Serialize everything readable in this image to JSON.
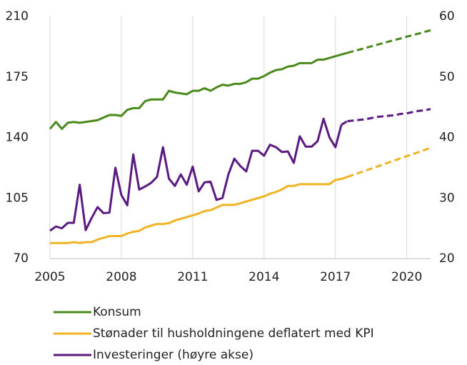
{
  "chart_data": {
    "type": "line",
    "x": [
      2005,
      2005.25,
      2005.5,
      2005.75,
      2006,
      2006.25,
      2006.5,
      2006.75,
      2007,
      2007.25,
      2007.5,
      2007.75,
      2008,
      2008.25,
      2008.5,
      2008.75,
      2009,
      2009.25,
      2009.5,
      2009.75,
      2010,
      2010.25,
      2010.5,
      2010.75,
      2011,
      2011.25,
      2011.5,
      2011.75,
      2012,
      2012.25,
      2012.5,
      2012.75,
      2013,
      2013.25,
      2013.5,
      2013.75,
      2014,
      2014.25,
      2014.5,
      2014.75,
      2015,
      2015.25,
      2015.5,
      2015.75,
      2016,
      2016.25,
      2016.5,
      2016.75,
      2017,
      2017.25,
      2017.5,
      2017.75,
      2018,
      2018.25,
      2018.5,
      2018.75,
      2019,
      2019.25,
      2019.5,
      2019.75,
      2020,
      2020.25,
      2020.5,
      2020.75,
      2021
    ],
    "dashed_from_x": 2017.25,
    "series": [
      {
        "name": "Konsum",
        "color": "#4a8a1c",
        "axis": "y",
        "values": [
          145,
          149,
          145,
          148.5,
          149,
          148.5,
          149,
          149.5,
          150,
          151.5,
          153,
          153,
          152.5,
          156,
          157,
          157,
          161,
          162,
          162,
          162,
          167,
          166,
          165.5,
          165,
          167,
          167,
          168.5,
          167,
          169,
          170.5,
          170,
          171,
          171,
          172,
          174,
          174,
          175.5,
          177.5,
          179,
          179.5,
          181,
          181.5,
          183,
          183,
          183,
          185,
          185,
          186,
          187,
          188,
          188.9,
          189.9,
          190.8,
          191.7,
          192.7,
          193.6,
          194.5,
          195.5,
          196.4,
          197.3,
          198.3,
          199.2,
          200.1,
          201.1,
          202
        ]
      },
      {
        "name": "Stønader til husholdningene deflatert med KPI",
        "color": "#f0b323",
        "axis": "y",
        "values": [
          79,
          79,
          79,
          79,
          79.5,
          79,
          79.5,
          79.5,
          81,
          82,
          83,
          83,
          83,
          84.5,
          85.5,
          86,
          88,
          89,
          90,
          90,
          90.5,
          92,
          93,
          94,
          95,
          96,
          97.5,
          98,
          99.5,
          101,
          101,
          101,
          102,
          103,
          104,
          105,
          106,
          107.5,
          108.5,
          110,
          112,
          112,
          113,
          113,
          113,
          113,
          113,
          113,
          115.5,
          116,
          117.2,
          118.4,
          119.6,
          120.8,
          122,
          123.2,
          124.4,
          125.6,
          126.8,
          128,
          129.2,
          130.4,
          131.6,
          132.8,
          134
        ]
      },
      {
        "name": "Investeringer (høyre akse)",
        "color": "#5b1a82",
        "axis": "y2",
        "values": [
          24.6,
          25.3,
          25,
          25.9,
          25.9,
          32.2,
          24.7,
          26.7,
          28.5,
          27.5,
          27.6,
          35,
          30.5,
          28.8,
          37.2,
          31.4,
          31.9,
          32.5,
          33.5,
          38.4,
          33.2,
          32,
          33.9,
          32.2,
          35.2,
          31.1,
          32.6,
          32.7,
          29.7,
          30,
          33.9,
          36.5,
          35.3,
          34.4,
          37.8,
          37.8,
          37,
          38.8,
          38.4,
          37.6,
          37.7,
          35.8,
          40.2,
          38.5,
          38.5,
          39.4,
          43.1,
          40,
          38.4,
          42.1,
          42.7,
          42.8,
          42.9,
          43,
          43.2,
          43.4,
          43.5,
          43.6,
          43.7,
          43.9,
          44,
          44.2,
          44.4,
          44.5,
          44.7
        ]
      }
    ],
    "xlim": [
      2005,
      2021
    ],
    "xticks": [
      2005,
      2008,
      2011,
      2014,
      2017,
      2020
    ],
    "ylim": [
      70,
      210
    ],
    "yticks": [
      70,
      105,
      140,
      175,
      210
    ],
    "y2lim": [
      20,
      60
    ],
    "y2ticks": [
      20,
      30,
      40,
      50,
      60
    ],
    "grid": "x",
    "legend": "bottom"
  }
}
